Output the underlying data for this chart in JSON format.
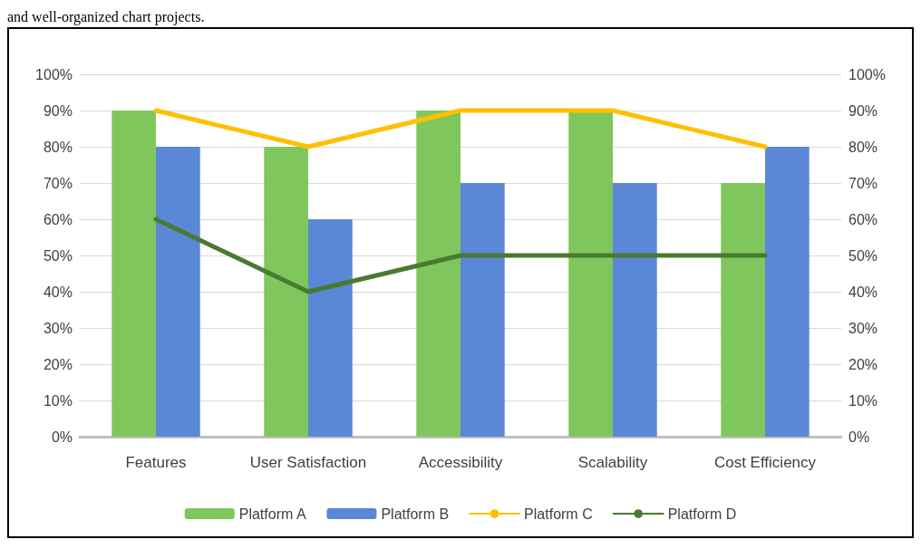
{
  "chart_data": {
    "type": "bar",
    "annotations": [
      "and well-organized chart projects."
    ],
    "categories": [
      "Features",
      "User Satisfaction",
      "Accessibility",
      "Scalability",
      "Cost Efficiency"
    ],
    "series": [
      {
        "name": "Platform A",
        "color": "#7fc75c",
        "values": [
          90,
          80,
          90,
          90,
          70
        ]
      },
      {
        "name": "Platform B",
        "color": "#5a87d6",
        "values": [
          80,
          60,
          70,
          70,
          80
        ]
      },
      {
        "name": "Platform C",
        "type": "line",
        "color": "#ffc000",
        "values": [
          90,
          80,
          90,
          90,
          80
        ]
      },
      {
        "name": "Platform D",
        "type": "line",
        "color": "#4a7a30",
        "values": [
          60,
          40,
          50,
          50,
          50
        ]
      }
    ],
    "ylim": [
      0,
      100
    ],
    "yticks": [
      {
        "value": 0,
        "label": "0%"
      },
      {
        "value": 10,
        "label": "10%"
      },
      {
        "value": 20,
        "label": "20%"
      },
      {
        "value": 30,
        "label": "30%"
      },
      {
        "value": 40,
        "label": "40%"
      },
      {
        "value": 50,
        "label": "50%"
      },
      {
        "value": 60,
        "label": "60%"
      },
      {
        "value": 70,
        "label": "70%"
      },
      {
        "value": 80,
        "label": "80%"
      },
      {
        "value": 90,
        "label": "90%"
      },
      {
        "value": 100,
        "label": "100%"
      }
    ],
    "y2lim": [
      0,
      100
    ],
    "y2ticks": [
      {
        "value": 0,
        "label": "0%"
      },
      {
        "value": 10,
        "label": "10%"
      },
      {
        "value": 20,
        "label": "20%"
      },
      {
        "value": 30,
        "label": "30%"
      },
      {
        "value": 40,
        "label": "40%"
      },
      {
        "value": 50,
        "label": "50%"
      },
      {
        "value": 60,
        "label": "60%"
      },
      {
        "value": 70,
        "label": "70%"
      },
      {
        "value": 80,
        "label": "80%"
      },
      {
        "value": 90,
        "label": "90%"
      },
      {
        "value": 100,
        "label": "100%"
      }
    ],
    "grid": "y",
    "legend": "bottom",
    "marker": "none",
    "line_style": "solid"
  }
}
